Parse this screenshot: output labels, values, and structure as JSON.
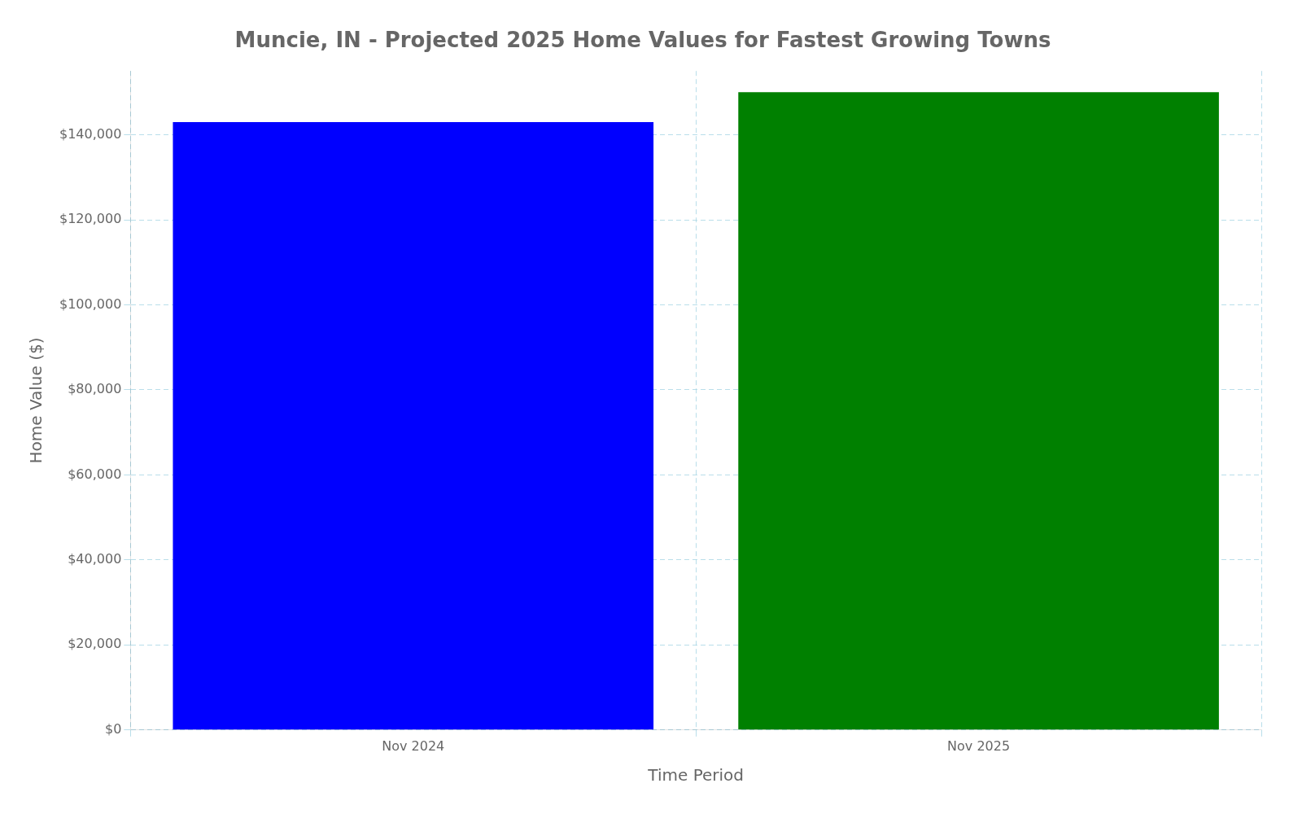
{
  "chart_data": {
    "type": "bar",
    "title": "Muncie, IN - Projected 2025 Home Values for Fastest Growing Towns",
    "xlabel": "Time Period",
    "ylabel": "Home Value ($)",
    "categories": [
      "Nov 2024",
      "Nov 2025"
    ],
    "values": [
      143000,
      150000
    ],
    "colors": [
      "#0000FF",
      "#008000"
    ],
    "ylim": [
      0,
      155000
    ],
    "yticks": [
      {
        "value": 0,
        "label": "$0"
      },
      {
        "value": 20000,
        "label": "$20,000"
      },
      {
        "value": 40000,
        "label": "$40,000"
      },
      {
        "value": 60000,
        "label": "$60,000"
      },
      {
        "value": 80000,
        "label": "$80,000"
      },
      {
        "value": 100000,
        "label": "$100,000"
      },
      {
        "value": 120000,
        "label": "$120,000"
      },
      {
        "value": 140000,
        "label": "$140,000"
      }
    ],
    "grid": true
  }
}
